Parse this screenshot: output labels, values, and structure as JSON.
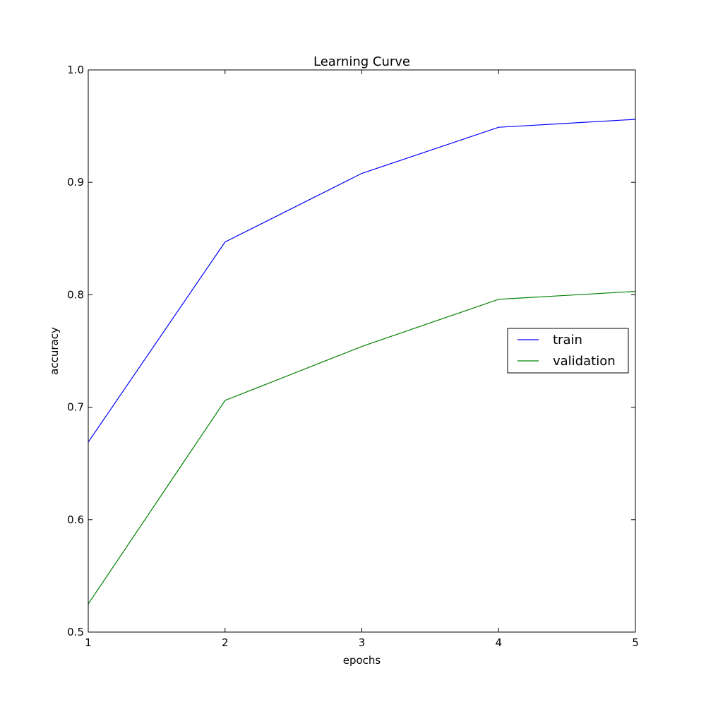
{
  "chart_data": {
    "type": "line",
    "title": "Learning Curve",
    "xlabel": "epochs",
    "ylabel": "accuracy",
    "x": [
      1,
      2,
      3,
      4,
      5
    ],
    "xlim": [
      1,
      5
    ],
    "ylim": [
      0.5,
      1.0
    ],
    "xticks": [
      "1",
      "2",
      "3",
      "4",
      "5"
    ],
    "yticks": [
      "0.5",
      "0.6",
      "0.7",
      "0.8",
      "0.9",
      "1.0"
    ],
    "grid": false,
    "legend_position": "center-right",
    "series": [
      {
        "name": "train",
        "color": "#0000ff",
        "values": [
          0.669,
          0.847,
          0.908,
          0.949,
          0.956
        ]
      },
      {
        "name": "validation",
        "color": "#008000",
        "values": [
          0.525,
          0.706,
          0.754,
          0.796,
          0.803
        ]
      }
    ]
  }
}
